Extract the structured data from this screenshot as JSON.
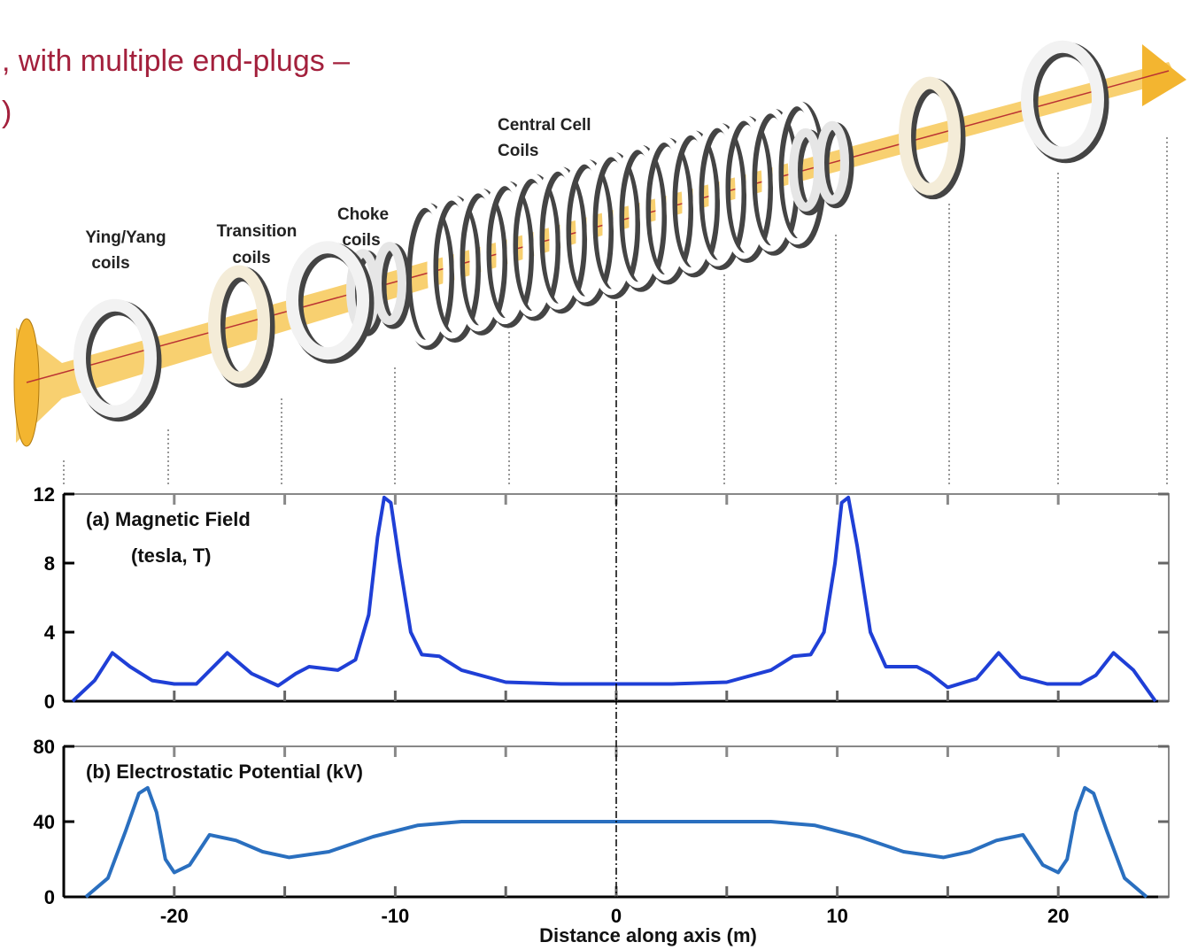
{
  "header": {
    "lines": [
      ", with multiple end-plugs –",
      ")"
    ]
  },
  "diagram": {
    "labels": [
      {
        "lines": [
          "Ying/Yang",
          "coils"
        ]
      },
      {
        "lines": [
          "Transition",
          "coils"
        ]
      },
      {
        "lines": [
          "Choke",
          "coils"
        ]
      },
      {
        "lines": [
          "Central Cell",
          "Coils"
        ]
      }
    ]
  },
  "chart_data": [
    {
      "type": "line",
      "title": "(a) Magnetic Field",
      "subtitle": "(tesla, T)",
      "x": [
        -24.6,
        -23.6,
        -22.8,
        -22,
        -21,
        -20,
        -19,
        -17.6,
        -16.5,
        -15.3,
        -14.5,
        -13.9,
        -12.6,
        -11.8,
        -11.2,
        -10.8,
        -10.5,
        -10.2,
        -9.8,
        -9.3,
        -8.8,
        -8,
        -7,
        -5,
        -2.5,
        0,
        2.5,
        5,
        7,
        8,
        8.8,
        9.4,
        9.9,
        10.2,
        10.5,
        10.9,
        11.5,
        12.2,
        13.6,
        14.2,
        15,
        16.3,
        17.3,
        18.3,
        19.5,
        21,
        21.7,
        22.5,
        23.4,
        24.4
      ],
      "values": [
        0,
        1.2,
        2.8,
        2.0,
        1.2,
        1.0,
        1.0,
        2.8,
        1.6,
        0.9,
        1.6,
        2.0,
        1.8,
        2.4,
        5,
        9.5,
        11.8,
        11.5,
        8,
        4,
        2.7,
        2.6,
        1.8,
        1.1,
        1.0,
        1.0,
        1.0,
        1.1,
        1.8,
        2.6,
        2.7,
        4,
        8,
        11.5,
        11.8,
        9,
        4,
        2,
        2.0,
        1.6,
        0.8,
        1.3,
        2.8,
        1.4,
        1.0,
        1.0,
        1.5,
        2.8,
        1.8,
        0
      ],
      "color": "#1f3fd6",
      "xlim": [
        -25,
        25
      ],
      "ylim": [
        0,
        12
      ],
      "yticks": [
        0,
        4,
        8,
        12
      ]
    },
    {
      "type": "line",
      "title": "(b) Electrostatic Potential (kV)",
      "xlabel": "Distance along axis (m)",
      "x": [
        -24,
        -23,
        -22.2,
        -21.6,
        -21.2,
        -20.8,
        -20.4,
        -20,
        -19.3,
        -18.4,
        -17.2,
        -16,
        -14.8,
        -13,
        -11,
        -9,
        -7,
        -3,
        0,
        3,
        7,
        9,
        11,
        13,
        14.8,
        16,
        17.2,
        18.4,
        19.3,
        20,
        20.4,
        20.8,
        21.2,
        21.6,
        22.2,
        23,
        24
      ],
      "values": [
        0,
        10,
        35,
        55,
        58,
        45,
        20,
        13,
        17,
        33,
        30,
        24,
        21,
        24,
        32,
        38,
        40,
        40,
        40,
        40,
        40,
        38,
        32,
        24,
        21,
        24,
        30,
        33,
        17,
        13,
        20,
        45,
        58,
        55,
        35,
        10,
        0
      ],
      "color": "#2a6fbf",
      "xlim": [
        -25,
        25
      ],
      "ylim": [
        0,
        80
      ],
      "yticks": [
        0,
        40,
        80
      ],
      "xticks": [
        {
          "value": -20,
          "label": "20"
        },
        {
          "value": -10,
          "label": "10"
        },
        0,
        10,
        20
      ],
      "xminorticks": [
        -15,
        -5,
        5,
        15
      ]
    }
  ]
}
